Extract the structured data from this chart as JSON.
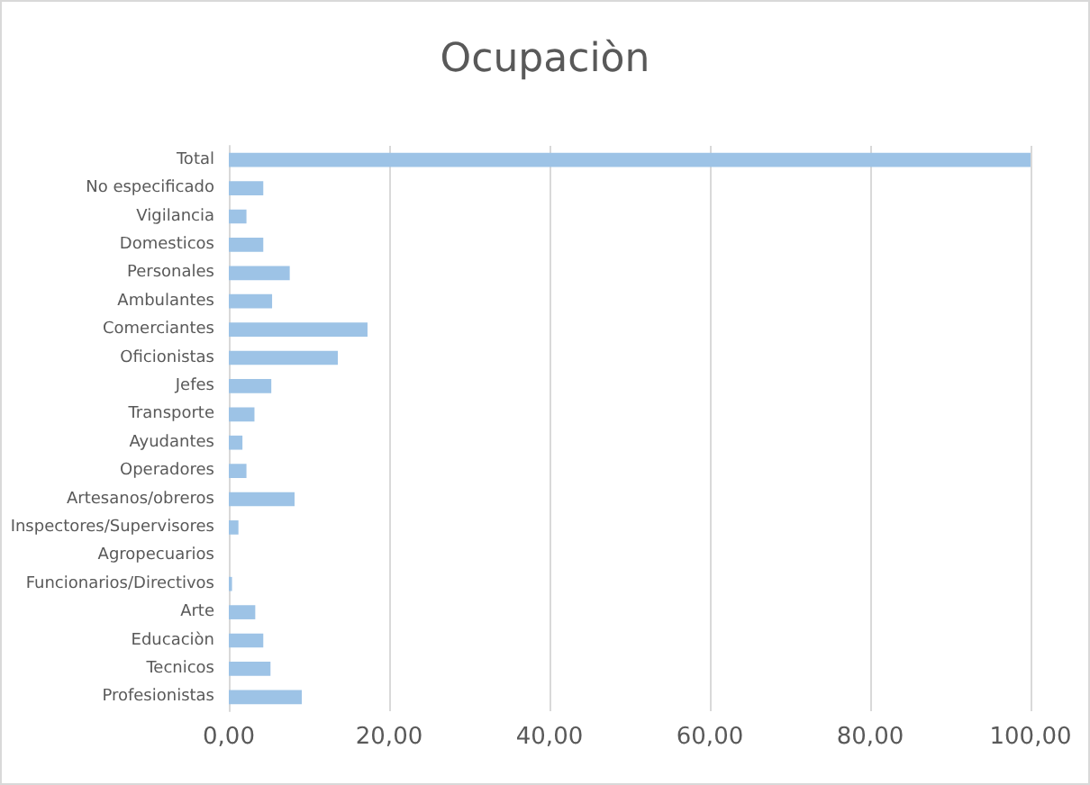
{
  "chart_data": {
    "type": "bar",
    "orientation": "horizontal",
    "title": "Ocupaciòn",
    "categories": [
      "Total",
      "No especificado",
      "Vigilancia",
      "Domesticos",
      "Personales",
      "Ambulantes",
      "Comerciantes",
      "Oficionistas",
      "Jefes",
      "Transporte",
      "Ayudantes",
      "Operadores",
      "Artesanos/obreros",
      "Inspectores/Supervisores",
      "Agropecuarios",
      "Funcionarios/Directivos",
      "Arte",
      "Educaciòn",
      "Tecnicos",
      "Profesionistas"
    ],
    "values": [
      100,
      4.3,
      2.2,
      4.3,
      7.6,
      5.4,
      17.3,
      13.6,
      5.3,
      3.2,
      1.7,
      2.2,
      8.2,
      1.2,
      0,
      0.4,
      3.3,
      4.3,
      5.2,
      9.1
    ],
    "color": "#9dc3e6",
    "xlim": [
      0,
      100
    ],
    "xticks": [
      {
        "value": 0,
        "label": "0,00"
      },
      {
        "value": 20,
        "label": "20,00"
      },
      {
        "value": 40,
        "label": "40,00"
      },
      {
        "value": 60,
        "label": "60,00"
      },
      {
        "value": 80,
        "label": "80,00"
      },
      {
        "value": 100,
        "label": "100,00"
      }
    ],
    "grid": "x"
  }
}
